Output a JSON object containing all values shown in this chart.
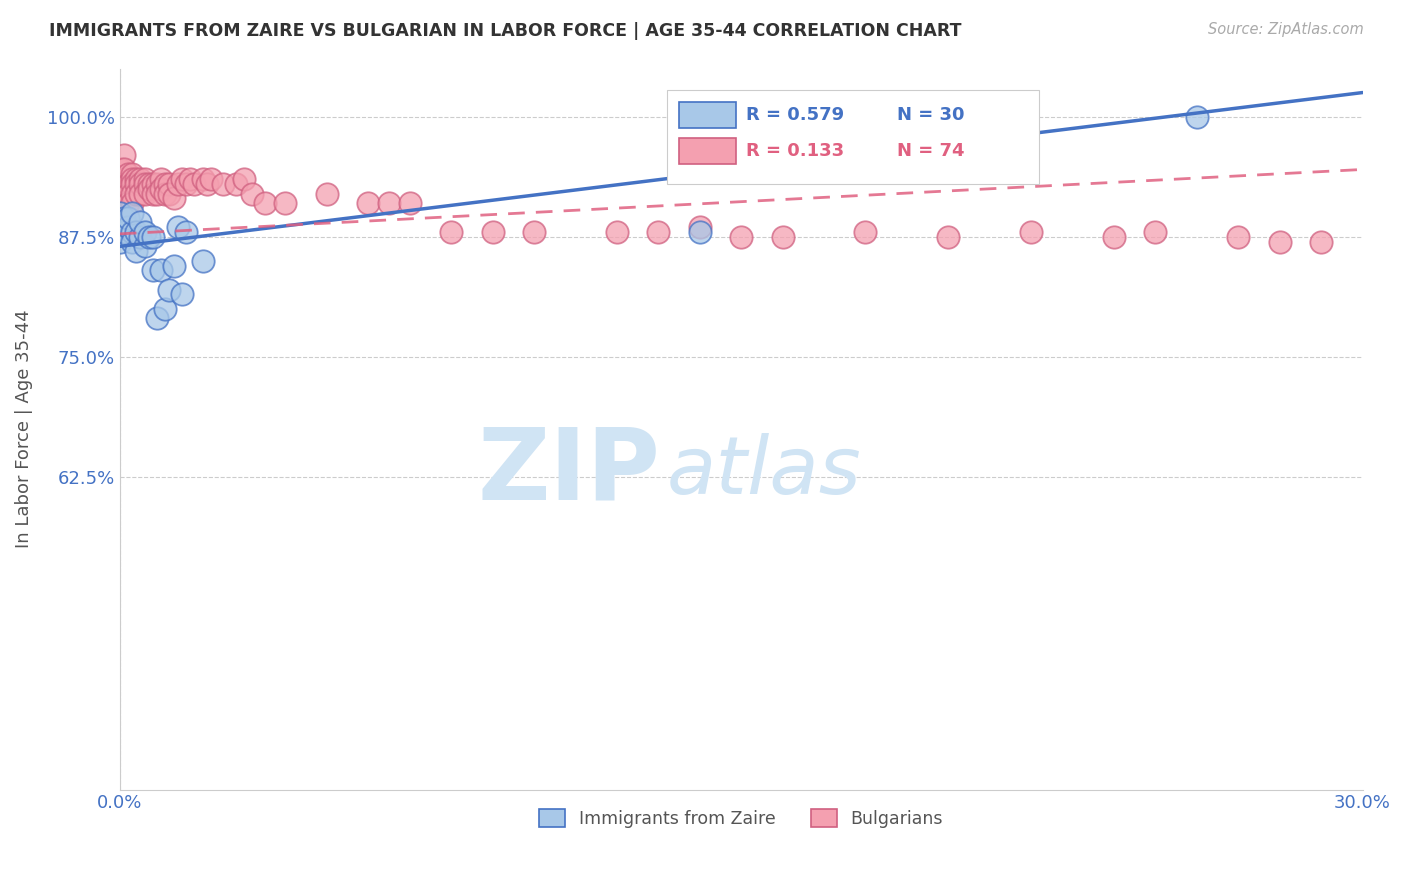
{
  "title": "IMMIGRANTS FROM ZAIRE VS BULGARIAN IN LABOR FORCE | AGE 35-44 CORRELATION CHART",
  "source_text": "Source: ZipAtlas.com",
  "ylabel": "In Labor Force | Age 35-44",
  "xlim": [
    0.0,
    0.3
  ],
  "ylim": [
    0.3,
    1.05
  ],
  "xtick_labels": [
    "0.0%",
    "30.0%"
  ],
  "ytick_positions": [
    0.625,
    0.75,
    0.875,
    1.0
  ],
  "ytick_labels": [
    "62.5%",
    "75.0%",
    "87.5%",
    "100.0%"
  ],
  "blue_R": "R = 0.579",
  "blue_N": "N = 30",
  "pink_R": "R = 0.133",
  "pink_N": "N = 74",
  "blue_line_color": "#4472c4",
  "pink_line_color": "#e06080",
  "marker_blue_face": "#a8c8e8",
  "marker_blue_edge": "#4472c4",
  "marker_pink_face": "#f4a0b0",
  "marker_pink_edge": "#d06080",
  "blue_line_x0": 0.0,
  "blue_line_y0": 0.865,
  "blue_line_x1": 0.3,
  "blue_line_y1": 1.025,
  "pink_line_x0": 0.0,
  "pink_line_y0": 0.878,
  "pink_line_x1": 0.3,
  "pink_line_y1": 0.945,
  "blue_scatter_x": [
    0.0,
    0.0,
    0.0,
    0.001,
    0.001,
    0.002,
    0.002,
    0.003,
    0.003,
    0.003,
    0.004,
    0.004,
    0.005,
    0.005,
    0.006,
    0.006,
    0.007,
    0.008,
    0.008,
    0.009,
    0.01,
    0.011,
    0.012,
    0.013,
    0.014,
    0.015,
    0.016,
    0.02,
    0.14,
    0.26
  ],
  "blue_scatter_y": [
    0.88,
    0.9,
    0.87,
    0.895,
    0.88,
    0.885,
    0.895,
    0.88,
    0.87,
    0.9,
    0.86,
    0.88,
    0.875,
    0.89,
    0.865,
    0.88,
    0.875,
    0.875,
    0.84,
    0.79,
    0.84,
    0.8,
    0.82,
    0.845,
    0.885,
    0.815,
    0.88,
    0.85,
    0.88,
    1.0
  ],
  "pink_scatter_x": [
    0.0,
    0.0,
    0.0,
    0.0,
    0.0,
    0.001,
    0.001,
    0.001,
    0.001,
    0.002,
    0.002,
    0.002,
    0.002,
    0.003,
    0.003,
    0.003,
    0.003,
    0.003,
    0.004,
    0.004,
    0.004,
    0.005,
    0.005,
    0.005,
    0.006,
    0.006,
    0.006,
    0.007,
    0.007,
    0.008,
    0.008,
    0.009,
    0.009,
    0.01,
    0.01,
    0.011,
    0.011,
    0.012,
    0.012,
    0.013,
    0.014,
    0.015,
    0.016,
    0.017,
    0.018,
    0.02,
    0.021,
    0.022,
    0.025,
    0.028,
    0.03,
    0.032,
    0.035,
    0.04,
    0.05,
    0.06,
    0.065,
    0.07,
    0.08,
    0.09,
    0.1,
    0.12,
    0.13,
    0.14,
    0.15,
    0.16,
    0.18,
    0.2,
    0.22,
    0.24,
    0.25,
    0.27,
    0.28,
    0.29
  ],
  "pink_scatter_y": [
    0.945,
    0.935,
    0.925,
    0.915,
    0.9,
    0.96,
    0.945,
    0.935,
    0.92,
    0.94,
    0.93,
    0.92,
    0.91,
    0.94,
    0.935,
    0.93,
    0.92,
    0.91,
    0.935,
    0.93,
    0.92,
    0.935,
    0.93,
    0.92,
    0.935,
    0.93,
    0.92,
    0.93,
    0.925,
    0.93,
    0.92,
    0.93,
    0.92,
    0.935,
    0.925,
    0.93,
    0.92,
    0.93,
    0.92,
    0.915,
    0.93,
    0.935,
    0.93,
    0.935,
    0.93,
    0.935,
    0.93,
    0.935,
    0.93,
    0.93,
    0.935,
    0.92,
    0.91,
    0.91,
    0.92,
    0.91,
    0.91,
    0.91,
    0.88,
    0.88,
    0.88,
    0.88,
    0.88,
    0.885,
    0.875,
    0.875,
    0.88,
    0.875,
    0.88,
    0.875,
    0.88,
    0.875,
    0.87,
    0.87
  ],
  "watermark_color": "#d0e4f4",
  "bottom_legend": [
    "Immigrants from Zaire",
    "Bulgarians"
  ]
}
